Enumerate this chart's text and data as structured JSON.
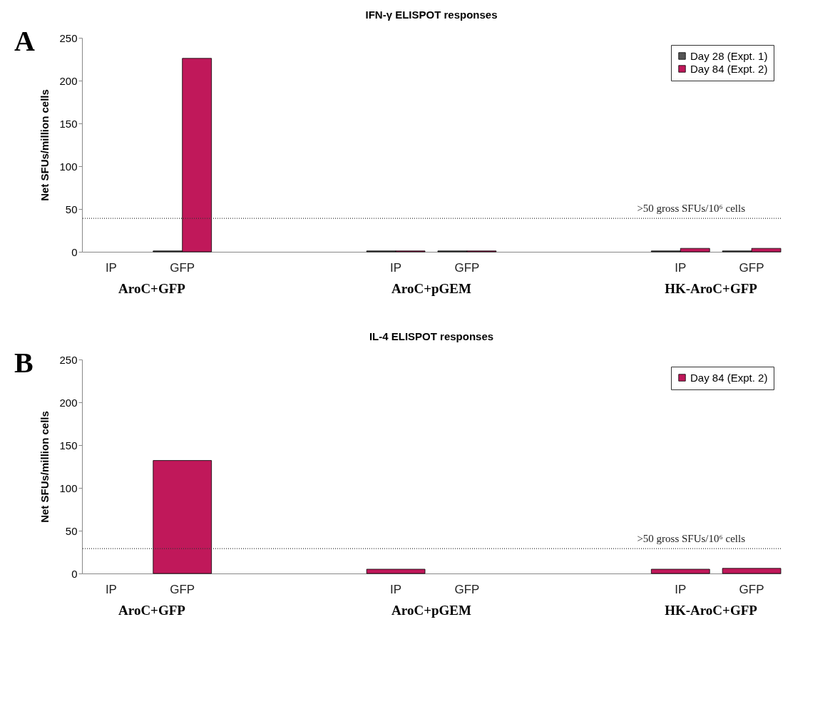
{
  "chart_data": [
    {
      "type": "bar",
      "title": "IFN-γ ELISPOT responses",
      "ylabel": "Net SFUs/million cells",
      "categories": [
        "IP",
        "GFP",
        null,
        null,
        "IP",
        "GFP",
        null,
        null,
        "IP",
        "GFP"
      ],
      "series": [
        {
          "name": "Day 28 (Expt. 1)",
          "color": "#555555",
          "values": [
            null,
            1,
            null,
            null,
            1,
            1,
            null,
            null,
            1,
            1
          ]
        },
        {
          "name": "Day 84 (Expt. 2)",
          "color": "#c0185a",
          "values": [
            null,
            226,
            null,
            null,
            1,
            1,
            null,
            null,
            4,
            4
          ]
        }
      ],
      "ylim": [
        0,
        250
      ],
      "yticks": [
        0,
        50,
        100,
        150,
        200,
        250
      ],
      "grid": false,
      "legend": "top right",
      "ref_lines": [
        {
          "axis": "y",
          "value": 39,
          "label": ">50 gross SFUs/10⁶ cells",
          "line_style": "dotted",
          "color": "#333333"
        }
      ],
      "annotations": [
        "A",
        "AroC+GFP",
        "AroC+pGEM",
        "HK-AroC+GFP"
      ]
    },
    {
      "type": "bar",
      "title": "IL-4 ELISPOT responses",
      "ylabel": "Net SFUs/million cells",
      "categories": [
        "IP",
        "GFP",
        null,
        null,
        "IP",
        "GFP",
        null,
        null,
        "IP",
        "GFP"
      ],
      "series": [
        {
          "name": "Day 84 (Expt. 2)",
          "color": "#c0185a",
          "values": [
            null,
            132,
            null,
            null,
            5,
            null,
            null,
            null,
            5,
            6
          ]
        }
      ],
      "ylim": [
        0,
        250
      ],
      "yticks": [
        0,
        50,
        100,
        150,
        200,
        250
      ],
      "grid": false,
      "legend": "top right",
      "ref_lines": [
        {
          "axis": "y",
          "value": 29,
          "label": ">50 gross SFUs/10⁶ cells",
          "line_style": "dotted",
          "color": "#333333"
        }
      ],
      "annotations": [
        "B",
        "AroC+GFP",
        "AroC+pGEM",
        "HK-AroC+GFP"
      ]
    }
  ]
}
